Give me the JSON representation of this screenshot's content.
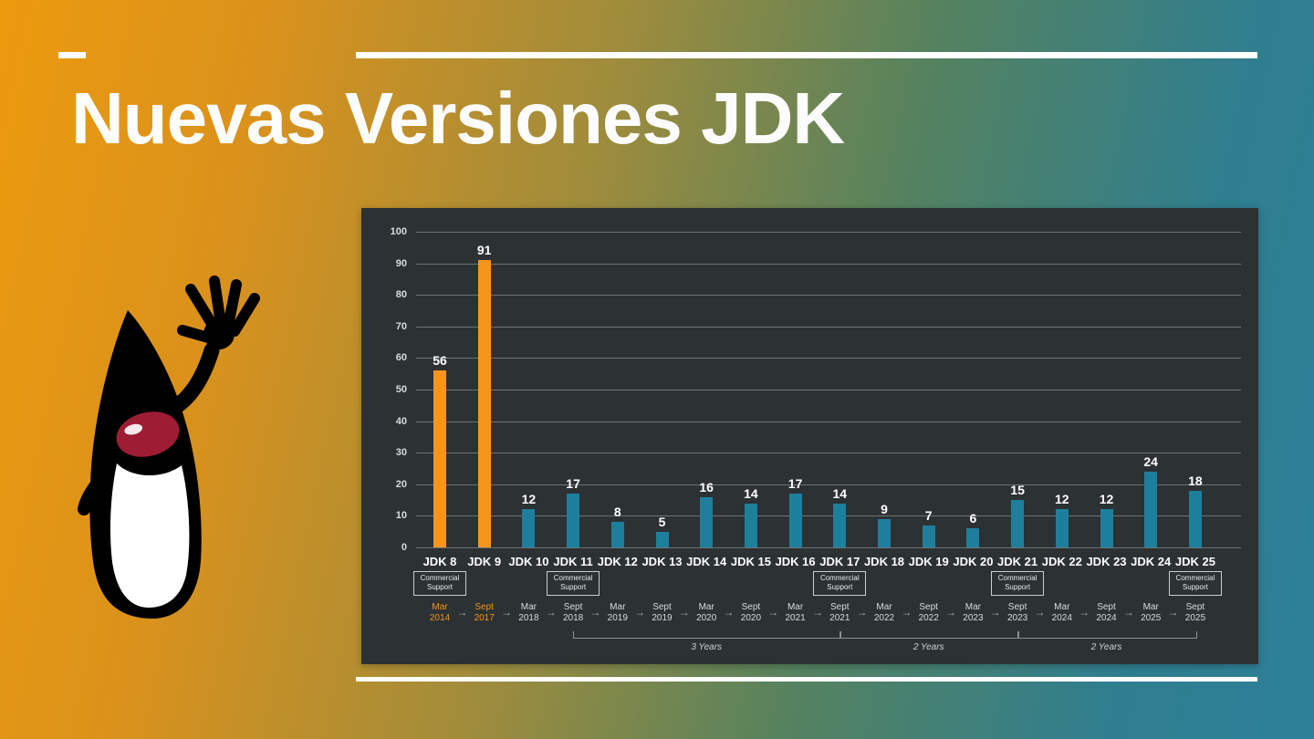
{
  "slide": {
    "title": "Nuevas Versiones JDK"
  },
  "mascot": {
    "name": "java-duke-waving"
  },
  "colors": {
    "orange": "#F7941E",
    "teal": "#1E7F9C",
    "panel_bg": "#2C3133",
    "grid": "#6E7375",
    "text_light": "#D9DCDC"
  },
  "chart_data": {
    "type": "bar",
    "categories": [
      "JDK 8",
      "JDK 9",
      "JDK 10",
      "JDK 11",
      "JDK 12",
      "JDK 13",
      "JDK 14",
      "JDK 15",
      "JDK 16",
      "JDK 17",
      "JDK 18",
      "JDK 19",
      "JDK 20",
      "JDK 21",
      "JDK 22",
      "JDK 23",
      "JDK 24",
      "JDK 25"
    ],
    "values": [
      56,
      91,
      12,
      17,
      8,
      5,
      16,
      14,
      17,
      14,
      9,
      7,
      6,
      15,
      12,
      12,
      24,
      18
    ],
    "highlighted_categories": [
      "JDK 8",
      "JDK 9"
    ],
    "ylim": [
      0,
      100
    ],
    "ytick_step": 10,
    "grid": true,
    "legend": false,
    "commercial_support_indices": [
      0,
      3,
      9,
      13,
      17
    ],
    "commercial_support_lines": [
      "Commercial",
      "Support"
    ],
    "arrow_glyph": "→",
    "timeline": [
      {
        "month": "Mar",
        "year": "2014",
        "highlight": true
      },
      {
        "month": "Sept",
        "year": "2017",
        "highlight": true
      },
      {
        "month": "Mar",
        "year": "2018",
        "highlight": false
      },
      {
        "month": "Sept",
        "year": "2018",
        "highlight": false
      },
      {
        "month": "Mar",
        "year": "2019",
        "highlight": false
      },
      {
        "month": "Sept",
        "year": "2019",
        "highlight": false
      },
      {
        "month": "Mar",
        "year": "2020",
        "highlight": false
      },
      {
        "month": "Sept",
        "year": "2020",
        "highlight": false
      },
      {
        "month": "Mar",
        "year": "2021",
        "highlight": false
      },
      {
        "month": "Sept",
        "year": "2021",
        "highlight": false
      },
      {
        "month": "Mar",
        "year": "2022",
        "highlight": false
      },
      {
        "month": "Sept",
        "year": "2022",
        "highlight": false
      },
      {
        "month": "Mar",
        "year": "2023",
        "highlight": false
      },
      {
        "month": "Sept",
        "year": "2023",
        "highlight": false
      },
      {
        "month": "Mar",
        "year": "2024",
        "highlight": false
      },
      {
        "month": "Sept",
        "year": "2024",
        "highlight": false
      },
      {
        "month": "Mar",
        "year": "2025",
        "highlight": false
      },
      {
        "month": "Sept",
        "year": "2025",
        "highlight": false
      }
    ],
    "braces": [
      {
        "label": "3 Years",
        "from_index": 3,
        "to_index": 9
      },
      {
        "label": "2 Years",
        "from_index": 9,
        "to_index": 13
      },
      {
        "label": "2 Years",
        "from_index": 13,
        "to_index": 17
      }
    ]
  }
}
